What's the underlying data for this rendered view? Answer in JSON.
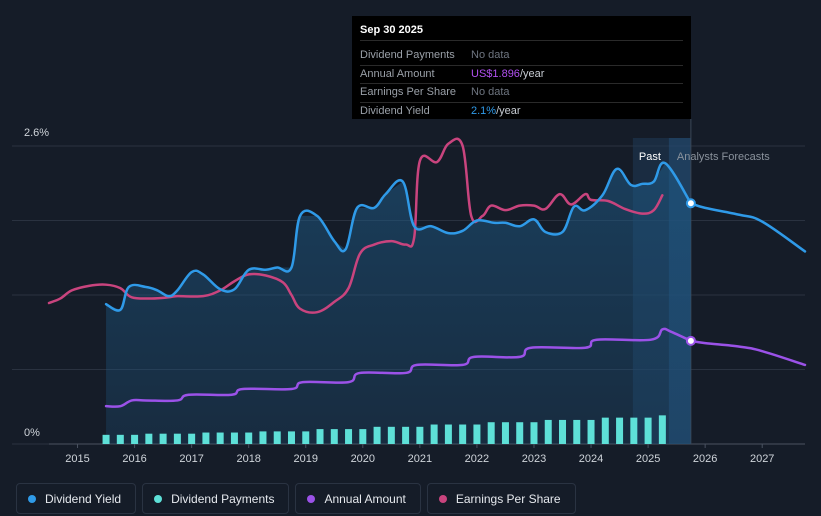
{
  "tooltip": {
    "date": "Sep 30 2025",
    "rows": [
      {
        "label": "Dividend Payments",
        "value": "No data",
        "unit": ""
      },
      {
        "label": "Annual Amount",
        "value": "US$1.896",
        "unit": "/year"
      },
      {
        "label": "Earnings Per Share",
        "value": "No data",
        "unit": ""
      },
      {
        "label": "Dividend Yield",
        "value": "2.1%",
        "unit": "/year"
      }
    ]
  },
  "legend": [
    {
      "label": "Dividend Yield",
      "color": "#2f9ae8"
    },
    {
      "label": "Dividend Payments",
      "color": "#5ee0d8"
    },
    {
      "label": "Annual Amount",
      "color": "#9b52e8"
    },
    {
      "label": "Earnings Per Share",
      "color": "#c9447e"
    }
  ],
  "chart_data": {
    "type": "line",
    "title": "",
    "y_axis": {
      "min": 0,
      "max": 2.6,
      "top_label": "2.6%",
      "bottom_label": "0%"
    },
    "x_axis": {
      "ticks": [
        "2015",
        "2016",
        "2017",
        "2018",
        "2019",
        "2020",
        "2021",
        "2022",
        "2023",
        "2024",
        "2025",
        "2026",
        "2027"
      ],
      "range": [
        2014.5,
        2027.75
      ]
    },
    "past_label": "Past",
    "forecast_label": "Analysts Forecasts",
    "past_boundary": 2025.75,
    "tooltip_x": 2025.75,
    "series": [
      {
        "name": "Dividend Yield",
        "color": "#2f9ae8",
        "points": [
          [
            2015.5,
            1.22
          ],
          [
            2015.75,
            1.17
          ],
          [
            2015.9,
            1.37
          ],
          [
            2016.2,
            1.37
          ],
          [
            2016.4,
            1.34
          ],
          [
            2016.6,
            1.29
          ],
          [
            2016.75,
            1.34
          ],
          [
            2017.0,
            1.5
          ],
          [
            2017.2,
            1.48
          ],
          [
            2017.5,
            1.35
          ],
          [
            2017.75,
            1.35
          ],
          [
            2018.0,
            1.52
          ],
          [
            2018.3,
            1.52
          ],
          [
            2018.5,
            1.54
          ],
          [
            2018.75,
            1.54
          ],
          [
            2018.9,
            1.99
          ],
          [
            2019.2,
            1.99
          ],
          [
            2019.5,
            1.77
          ],
          [
            2019.7,
            1.7
          ],
          [
            2019.9,
            2.06
          ],
          [
            2020.2,
            2.06
          ],
          [
            2020.4,
            2.18
          ],
          [
            2020.7,
            2.29
          ],
          [
            2020.9,
            1.9
          ],
          [
            2021.2,
            1.9
          ],
          [
            2021.5,
            1.84
          ],
          [
            2021.75,
            1.86
          ],
          [
            2022.0,
            1.95
          ],
          [
            2022.3,
            1.93
          ],
          [
            2022.5,
            1.93
          ],
          [
            2022.75,
            1.9
          ],
          [
            2023.0,
            1.96
          ],
          [
            2023.2,
            1.85
          ],
          [
            2023.5,
            1.85
          ],
          [
            2023.7,
            2.07
          ],
          [
            2023.9,
            2.04
          ],
          [
            2024.2,
            2.17
          ],
          [
            2024.45,
            2.4
          ],
          [
            2024.7,
            2.26
          ],
          [
            2024.9,
            2.27
          ],
          [
            2025.1,
            2.29
          ],
          [
            2025.3,
            2.45
          ],
          [
            2025.75,
            2.1
          ]
        ],
        "forecast": [
          [
            2025.75,
            2.1
          ],
          [
            2026.0,
            2.06
          ],
          [
            2026.6,
            2.0
          ],
          [
            2027.0,
            1.94
          ],
          [
            2027.75,
            1.68
          ]
        ]
      },
      {
        "name": "Annual Amount",
        "color": "#9b52e8",
        "points": [
          [
            2015.5,
            0.33
          ],
          [
            2015.75,
            0.33
          ],
          [
            2015.95,
            0.38
          ],
          [
            2016.2,
            0.38
          ],
          [
            2016.75,
            0.38
          ],
          [
            2016.95,
            0.43
          ],
          [
            2017.7,
            0.43
          ],
          [
            2017.9,
            0.48
          ],
          [
            2018.75,
            0.48
          ],
          [
            2018.95,
            0.54
          ],
          [
            2019.75,
            0.54
          ],
          [
            2019.95,
            0.62
          ],
          [
            2020.75,
            0.62
          ],
          [
            2020.95,
            0.69
          ],
          [
            2021.75,
            0.69
          ],
          [
            2021.95,
            0.76
          ],
          [
            2022.75,
            0.76
          ],
          [
            2022.95,
            0.84
          ],
          [
            2023.9,
            0.84
          ],
          [
            2024.1,
            0.91
          ],
          [
            2025.05,
            0.91
          ],
          [
            2025.25,
            1.0
          ],
          [
            2025.4,
            0.98
          ],
          [
            2025.75,
            0.9
          ]
        ],
        "forecast": [
          [
            2025.75,
            0.9
          ],
          [
            2026.0,
            0.88
          ],
          [
            2026.6,
            0.85
          ],
          [
            2027.0,
            0.81
          ],
          [
            2027.75,
            0.69
          ]
        ]
      },
      {
        "name": "Earnings Per Share",
        "color": "#c9447e",
        "points": [
          [
            2014.5,
            1.23
          ],
          [
            2014.7,
            1.27
          ],
          [
            2014.9,
            1.34
          ],
          [
            2015.2,
            1.38
          ],
          [
            2015.5,
            1.39
          ],
          [
            2015.75,
            1.36
          ],
          [
            2015.95,
            1.28
          ],
          [
            2016.3,
            1.27
          ],
          [
            2016.6,
            1.28
          ],
          [
            2016.75,
            1.29
          ],
          [
            2017.2,
            1.29
          ],
          [
            2017.5,
            1.34
          ],
          [
            2017.75,
            1.42
          ],
          [
            2018.0,
            1.48
          ],
          [
            2018.3,
            1.47
          ],
          [
            2018.6,
            1.41
          ],
          [
            2018.75,
            1.3
          ],
          [
            2018.9,
            1.18
          ],
          [
            2019.2,
            1.15
          ],
          [
            2019.5,
            1.24
          ],
          [
            2019.75,
            1.36
          ],
          [
            2019.95,
            1.66
          ],
          [
            2020.2,
            1.74
          ],
          [
            2020.5,
            1.77
          ],
          [
            2020.75,
            1.74
          ],
          [
            2020.9,
            1.8
          ],
          [
            2021.0,
            2.47
          ],
          [
            2021.3,
            2.46
          ],
          [
            2021.5,
            2.62
          ],
          [
            2021.75,
            2.6
          ],
          [
            2021.9,
            1.99
          ],
          [
            2022.1,
            1.99
          ],
          [
            2022.25,
            2.08
          ],
          [
            2022.5,
            2.04
          ],
          [
            2022.75,
            2.08
          ],
          [
            2023.0,
            2.08
          ],
          [
            2023.2,
            2.05
          ],
          [
            2023.45,
            2.18
          ],
          [
            2023.65,
            2.09
          ],
          [
            2023.9,
            2.18
          ],
          [
            2024.0,
            2.13
          ],
          [
            2024.3,
            2.12
          ],
          [
            2024.6,
            2.05
          ],
          [
            2024.9,
            2.01
          ],
          [
            2025.1,
            2.04
          ],
          [
            2025.25,
            2.17
          ]
        ]
      }
    ],
    "bars": {
      "name": "Dividend Payments",
      "color": "#5ee0d8",
      "x": [
        2015.5,
        2015.75,
        2016.0,
        2016.25,
        2016.5,
        2016.75,
        2017.0,
        2017.25,
        2017.5,
        2017.75,
        2018.0,
        2018.25,
        2018.5,
        2018.75,
        2019.0,
        2019.25,
        2019.5,
        2019.75,
        2020.0,
        2020.25,
        2020.5,
        2020.75,
        2021.0,
        2021.25,
        2021.5,
        2021.75,
        2022.0,
        2022.25,
        2022.5,
        2022.75,
        2023.0,
        2023.25,
        2023.5,
        2023.75,
        2024.0,
        2024.25,
        2024.5,
        2024.75,
        2025.0,
        2025.25
      ],
      "values": [
        0.08,
        0.08,
        0.08,
        0.09,
        0.09,
        0.09,
        0.09,
        0.1,
        0.1,
        0.1,
        0.1,
        0.11,
        0.11,
        0.11,
        0.11,
        0.13,
        0.13,
        0.13,
        0.13,
        0.15,
        0.15,
        0.15,
        0.15,
        0.17,
        0.17,
        0.17,
        0.17,
        0.19,
        0.19,
        0.19,
        0.19,
        0.21,
        0.21,
        0.21,
        0.21,
        0.23,
        0.23,
        0.23,
        0.23,
        0.25
      ]
    }
  }
}
